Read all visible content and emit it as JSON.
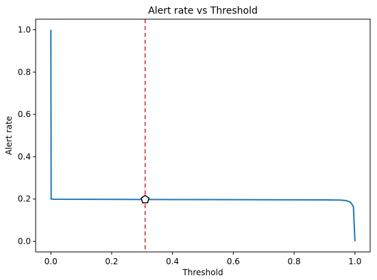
{
  "chart_data": {
    "type": "line",
    "title": "Alert rate vs Threshold",
    "x_label": "Threshold",
    "y_label": "Alert rate",
    "series": [
      {
        "color": "#1f77b4",
        "x": [
          0.0,
          0.001,
          0.01,
          0.3,
          0.6,
          0.9,
          0.95,
          0.97,
          0.985,
          0.995,
          1.0
        ],
        "values": [
          1.0,
          0.2,
          0.199,
          0.198,
          0.197,
          0.196,
          0.195,
          0.193,
          0.185,
          0.165,
          0.0
        ]
      }
    ],
    "threshold": {
      "x": 0.31,
      "color": "#d62728"
    },
    "marker": {
      "x": 0.31,
      "y": 0.198
    },
    "xlim": [
      -0.05,
      1.05
    ],
    "ylim": [
      -0.05,
      1.05
    ],
    "xticks": [
      {
        "value": 0,
        "label": "0.0"
      },
      0.2,
      0.4,
      0.6,
      0.8,
      {
        "value": 1,
        "label": "1.0"
      }
    ],
    "yticks": [
      {
        "value": 0,
        "label": "0.0"
      },
      0.2,
      0.4,
      0.6,
      0.8,
      {
        "value": 1,
        "label": "1.0"
      }
    ]
  }
}
